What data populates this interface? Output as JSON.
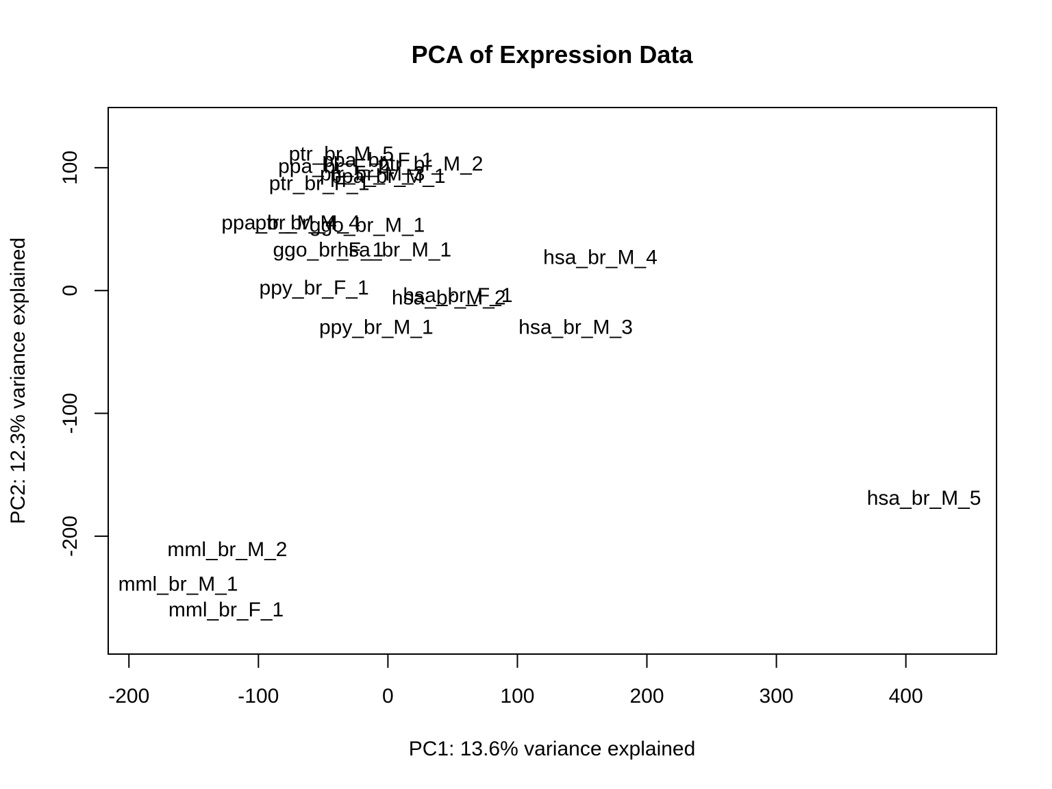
{
  "chart_data": {
    "type": "scatter",
    "title": "PCA of Expression Data",
    "xlabel": "PC1: 13.6% variance explained",
    "ylabel": "PC2: 12.3% variance explained",
    "xlim": [
      -216,
      470
    ],
    "ylim": [
      -296,
      149
    ],
    "xticks": [
      -200,
      -100,
      0,
      100,
      200,
      300,
      400
    ],
    "yticks": [
      -200,
      -100,
      0,
      100
    ],
    "marker": "text-label",
    "points": [
      {
        "label": "ptr_br_M_5",
        "x": -36,
        "y": 111
      },
      {
        "label": "ppa_br_F_1",
        "x": -8,
        "y": 106
      },
      {
        "label": "ptr_br_M_2",
        "x": 33,
        "y": 103
      },
      {
        "label": "ppa_br_F_2",
        "x": -42,
        "y": 101
      },
      {
        "label": "ptr_br_M_3",
        "x": -12,
        "y": 95
      },
      {
        "label": "ppa_br_M_1",
        "x": 0,
        "y": 93
      },
      {
        "label": "ptr_br_F_1",
        "x": -53,
        "y": 87
      },
      {
        "label": "ppa_br_M_4",
        "x": -84,
        "y": 55
      },
      {
        "label": "ptr_br_M_4",
        "x": -62,
        "y": 55
      },
      {
        "label": "ggo_br_M_1",
        "x": -16,
        "y": 53
      },
      {
        "label": "ggo_br_F_1",
        "x": -46,
        "y": 33
      },
      {
        "label": "hsa_br_M_1",
        "x": 5,
        "y": 33
      },
      {
        "label": "hsa_br_M_4",
        "x": 164,
        "y": 27
      },
      {
        "label": "ppy_br_F_1",
        "x": -57,
        "y": 2
      },
      {
        "label": "hsa_br_F_1",
        "x": 54,
        "y": -4
      },
      {
        "label": "hsa_br_M_2",
        "x": 47,
        "y": -6
      },
      {
        "label": "ppy_br_M_1",
        "x": -9,
        "y": -30
      },
      {
        "label": "hsa_br_M_3",
        "x": 145,
        "y": -30
      },
      {
        "label": "hsa_br_M_5",
        "x": 414,
        "y": -169
      },
      {
        "label": "mml_br_M_2",
        "x": -124,
        "y": -211
      },
      {
        "label": "mml_br_M_1",
        "x": -162,
        "y": -239
      },
      {
        "label": "mml_br_F_1",
        "x": -125,
        "y": -260
      }
    ]
  }
}
